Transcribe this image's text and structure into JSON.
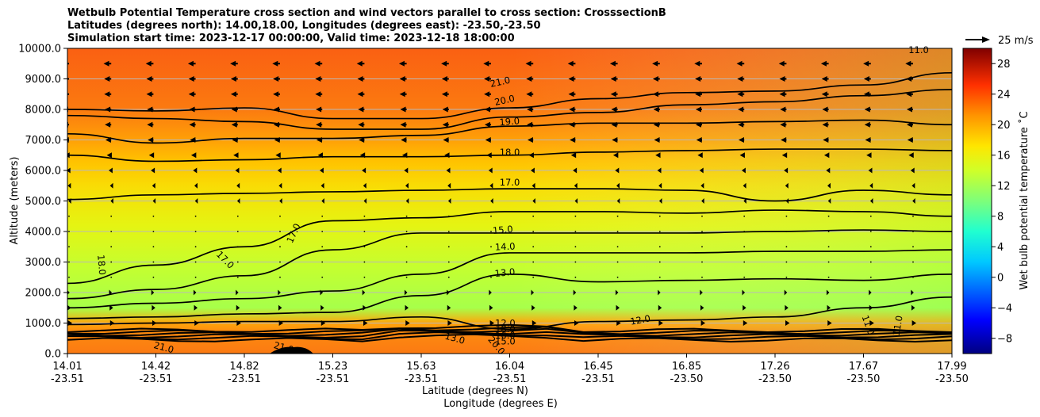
{
  "chart_data": {
    "type": "heatmap",
    "title_lines": [
      "Wetbulb Potential Temperature cross section and wind vectors parallel to cross section: CrosssectionB",
      "Latitudes (degrees north): 14.00,18.00, Longitudes (degrees east): -23.50,-23.50",
      "Simulation start time: 2023-12-17 00:00:00, Valid time: 2023-12-18 18:00:00"
    ],
    "ylabel": "Altitude (meters)",
    "xlabel_lines": [
      "Latitude (degrees N)",
      "Longitude (degrees E)"
    ],
    "ylim": [
      0,
      10000
    ],
    "y_ticks": [
      0,
      1000,
      2000,
      3000,
      4000,
      5000,
      6000,
      7000,
      8000,
      9000,
      10000
    ],
    "y_tick_labels": [
      "0.0",
      "1000.0",
      "2000.0",
      "3000.0",
      "4000.0",
      "5000.0",
      "6000.0",
      "7000.0",
      "8000.0",
      "9000.0",
      "10000.0"
    ],
    "x_ticks": [
      {
        "lat": "14.01",
        "lon": "-23.51"
      },
      {
        "lat": "14.42",
        "lon": "-23.51"
      },
      {
        "lat": "14.82",
        "lon": "-23.51"
      },
      {
        "lat": "15.23",
        "lon": "-23.51"
      },
      {
        "lat": "15.63",
        "lon": "-23.51"
      },
      {
        "lat": "16.04",
        "lon": "-23.51"
      },
      {
        "lat": "16.45",
        "lon": "-23.51"
      },
      {
        "lat": "16.85",
        "lon": "-23.50"
      },
      {
        "lat": "17.26",
        "lon": "-23.50"
      },
      {
        "lat": "17.67",
        "lon": "-23.50"
      },
      {
        "lat": "17.99",
        "lon": "-23.50"
      }
    ],
    "colorbar": {
      "label": "Wet bulb potential temperature $^\\circ$C",
      "label_text": "Wet bulb potential temperature ˚C",
      "range": [
        -10,
        30
      ],
      "ticks": [
        -8,
        -4,
        0,
        4,
        8,
        12,
        16,
        20,
        24,
        28
      ],
      "tick_labels": [
        "−8",
        "−4",
        "0",
        "4",
        "8",
        "12",
        "16",
        "20",
        "24",
        "28"
      ]
    },
    "quiver_key": {
      "label": "25 m/s",
      "speed": 25
    },
    "contour_levels": [
      {
        "value": 21.0,
        "heights": [
          8000,
          7950,
          8050,
          7700,
          7700,
          8050,
          8350,
          8550,
          8600,
          8800,
          9200
        ]
      },
      {
        "value": 20.0,
        "heights": [
          7800,
          7700,
          7600,
          7350,
          7350,
          7750,
          7900,
          8150,
          8250,
          8450,
          8650
        ]
      },
      {
        "value": 19.0,
        "heights": [
          7200,
          6900,
          7050,
          7050,
          7150,
          7450,
          7550,
          7550,
          7600,
          7650,
          7500
        ]
      },
      {
        "value": 18.0,
        "heights": [
          6500,
          6300,
          6350,
          6450,
          6450,
          6500,
          6600,
          6650,
          6700,
          6700,
          6650
        ]
      },
      {
        "value": 17.0,
        "heights": [
          5050,
          5200,
          5250,
          5300,
          5350,
          5400,
          5400,
          5350,
          5000,
          5350,
          5200
        ]
      },
      {
        "value": 15.0,
        "heights": [
          2300,
          2900,
          3500,
          4350,
          4450,
          4650,
          4650,
          4600,
          4700,
          4650,
          4500
        ]
      },
      {
        "value": 14.0,
        "heights": [
          1800,
          2100,
          2550,
          3400,
          3950,
          3950,
          3950,
          3950,
          4000,
          4050,
          4000
        ]
      },
      {
        "value": 13.0,
        "heights": [
          1500,
          1650,
          1800,
          2050,
          2600,
          3300,
          3300,
          3300,
          3350,
          3350,
          3400
        ]
      },
      {
        "value": 12.0,
        "heights": [
          1150,
          1200,
          1300,
          1350,
          1900,
          2600,
          2350,
          2400,
          2450,
          2400,
          2600
        ]
      },
      {
        "value": 11.0,
        "heights": [
          950,
          1000,
          1050,
          1050,
          1200,
          800,
          1050,
          1100,
          1200,
          1500,
          1850
        ]
      }
    ],
    "contour_labels": [
      {
        "text": "21.0",
        "lat": 15.96,
        "z": 8800,
        "rot": -12
      },
      {
        "text": "20.0",
        "lat": 15.98,
        "z": 8200,
        "rot": -12
      },
      {
        "text": "19.0",
        "lat": 16.0,
        "z": 7500,
        "rot": -4
      },
      {
        "text": "18.0",
        "lat": 16.0,
        "z": 6500,
        "rot": 0
      },
      {
        "text": "17.0",
        "lat": 16.0,
        "z": 5500,
        "rot": 0
      },
      {
        "text": "15.0",
        "lat": 15.97,
        "z": 3950,
        "rot": -5
      },
      {
        "text": "14.0",
        "lat": 15.98,
        "z": 3400,
        "rot": -3
      },
      {
        "text": "13.0",
        "lat": 15.98,
        "z": 2550,
        "rot": -6
      },
      {
        "text": "12.0",
        "lat": 16.59,
        "z": 1000,
        "rot": -10
      },
      {
        "text": "17.0",
        "lat": 15.04,
        "z": 3900,
        "rot": -65
      },
      {
        "text": "17.0",
        "lat": 14.71,
        "z": 3000,
        "rot": 45
      },
      {
        "text": "18.0",
        "lat": 14.15,
        "z": 2900,
        "rot": 85
      },
      {
        "text": "21.0",
        "lat": 14.44,
        "z": 100,
        "rot": 15
      },
      {
        "text": "21.0",
        "lat": 14.98,
        "z": 100,
        "rot": 15
      },
      {
        "text": "13.0",
        "lat": 15.75,
        "z": 400,
        "rot": 15
      },
      {
        "text": "20.0",
        "lat": 15.93,
        "z": 200,
        "rot": 50
      },
      {
        "text": "12.0",
        "lat": 15.98,
        "z": 900,
        "rot": 0
      },
      {
        "text": "18.0",
        "lat": 15.98,
        "z": 700,
        "rot": 0
      },
      {
        "text": "16.0",
        "lat": 15.98,
        "z": 500,
        "rot": 0
      },
      {
        "text": "15.0",
        "lat": 15.98,
        "z": 300,
        "rot": 0
      },
      {
        "text": "11.0",
        "lat": 17.6,
        "z": 900,
        "rot": 70
      },
      {
        "text": "11.0",
        "lat": 17.76,
        "z": 900,
        "rot": -80
      },
      {
        "text": "11.0",
        "lat": 17.84,
        "z": 9850,
        "rot": 0
      }
    ],
    "wind_vectors": [
      {
        "z": 9500,
        "u": -12
      },
      {
        "z": 9000,
        "u": -11
      },
      {
        "z": 8500,
        "u": -11
      },
      {
        "z": 8000,
        "u": -10
      },
      {
        "z": 7500,
        "u": -10
      },
      {
        "z": 7000,
        "u": -9
      },
      {
        "z": 6500,
        "u": -7
      },
      {
        "z": 6000,
        "u": -4
      },
      {
        "z": 5500,
        "u": -2
      },
      {
        "z": 5000,
        "u": -1
      },
      {
        "z": 4500,
        "u": 0
      },
      {
        "z": 4000,
        "u": 0
      },
      {
        "z": 3500,
        "u": 0
      },
      {
        "z": 3000,
        "u": 0
      },
      {
        "z": 2500,
        "u": 0
      },
      {
        "z": 2000,
        "u": 1
      },
      {
        "z": 1500,
        "u": 3
      },
      {
        "z": 1000,
        "u": 5
      }
    ]
  }
}
